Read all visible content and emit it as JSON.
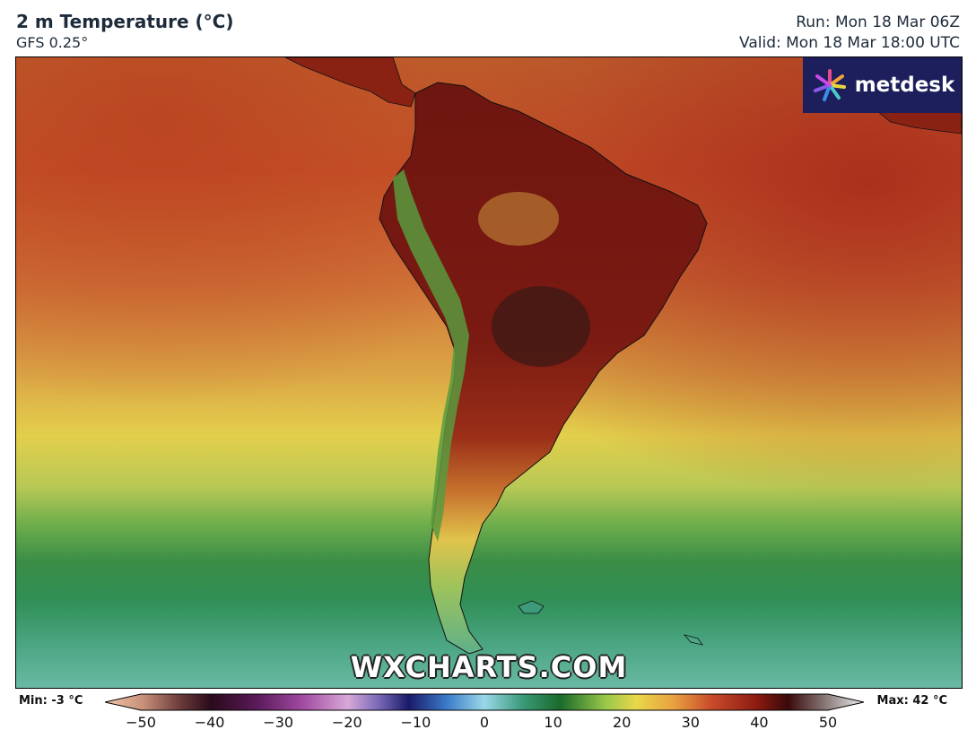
{
  "header": {
    "title": "2 m Temperature (°C)",
    "model": "GFS 0.25°",
    "run": "Run: Mon 18 Mar 06Z",
    "valid": "Valid: Mon 18 Mar 18:00 UTC"
  },
  "logo": {
    "text": "metdesk",
    "icon": "metdesk-burst-icon",
    "background": "#1c1f5c"
  },
  "watermark": "WXCHARTS.COM",
  "legend": {
    "min_label": "Min: -3 °C",
    "max_label": "Max: 42 °C",
    "ticks": [
      "−50",
      "−40",
      "−30",
      "−20",
      "−10",
      "0",
      "10",
      "20",
      "30",
      "40",
      "50"
    ],
    "range": [
      -50,
      50
    ]
  },
  "colors": {
    "deep_ocean_green": "#2e8b4a",
    "teal": "#5fb39a",
    "yellow": "#e6d84a",
    "orange": "#d67d3a",
    "hot_red": "#a32c1a",
    "very_hot": "#6a1010"
  }
}
